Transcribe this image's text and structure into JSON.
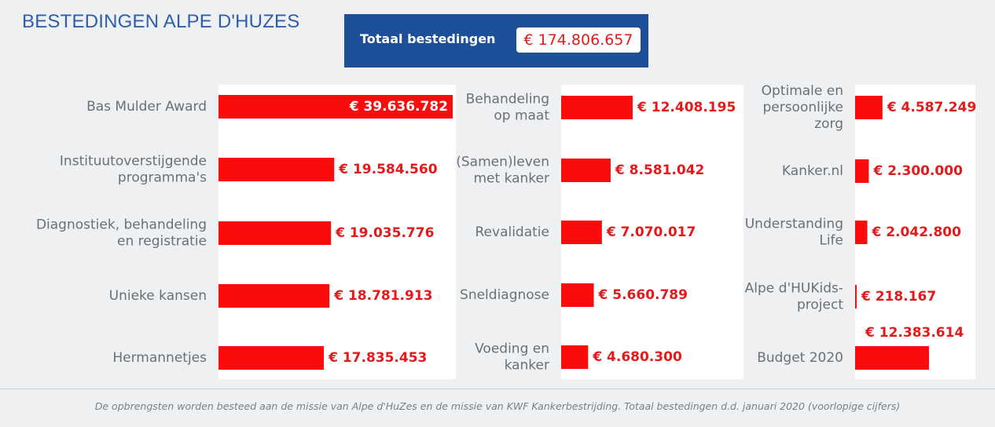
{
  "header": {
    "title": "BESTEDINGEN ALPE D'HUZES",
    "total_label": "Totaal bestedingen",
    "total_value": "€ 174.806.657"
  },
  "footnote": "De opbrengsten worden besteed aan de missie van Alpe d'HuZes en de missie van KWF Kankerbestrijding. Totaal bestedingen d.d. januari 2020 (voorlopige cijfers)",
  "colors": {
    "bar": "#fb0b0c",
    "value_text": "#e41a1a",
    "label_text": "#6b7077",
    "title": "#2f5faa",
    "total_box": "#1e4f99"
  },
  "chart_data": [
    {
      "type": "bar",
      "orientation": "horizontal",
      "categories": [
        [
          "Bas Mulder Award"
        ],
        [
          "Instituutoverstijgende",
          "programma's"
        ],
        [
          "Diagnostiek, behandeling",
          "en registratie"
        ],
        [
          "Unieke kansen"
        ],
        [
          "Hermannetjes"
        ]
      ],
      "values": [
        39636782,
        19584560,
        19035776,
        18781913,
        17835453
      ],
      "value_labels": [
        "€ 39.636.782",
        "€ 19.584.560",
        "€ 19.035.776",
        "€ 18.781.913",
        "€ 17.835.453"
      ]
    },
    {
      "type": "bar",
      "orientation": "horizontal",
      "categories": [
        [
          "Behandeling",
          "op maat"
        ],
        [
          "(Samen)leven",
          "met kanker"
        ],
        [
          "Revalidatie"
        ],
        [
          "Sneldiagnose"
        ],
        [
          "Voeding en",
          "kanker"
        ]
      ],
      "values": [
        12408195,
        8581042,
        7070017,
        5660789,
        4680300
      ],
      "value_labels": [
        "€ 12.408.195",
        "€ 8.581.042",
        "€ 7.070.017",
        "€ 5.660.789",
        "€ 4.680.300"
      ]
    },
    {
      "type": "bar",
      "orientation": "horizontal",
      "categories": [
        [
          "Optimale en",
          "persoonlijke",
          "zorg"
        ],
        [
          "Kanker.nl"
        ],
        [
          "Understanding",
          "Life"
        ],
        [
          "Alpe d'HUKids-",
          "project"
        ],
        [
          "Budget 2020"
        ]
      ],
      "values": [
        4587249,
        2300000,
        2042800,
        218167,
        12383614
      ],
      "value_labels": [
        "€ 4.587.249",
        "€ 2.300.000",
        "€ 2.042.800",
        "€ 218.167",
        "€ 12.383.614"
      ]
    }
  ]
}
